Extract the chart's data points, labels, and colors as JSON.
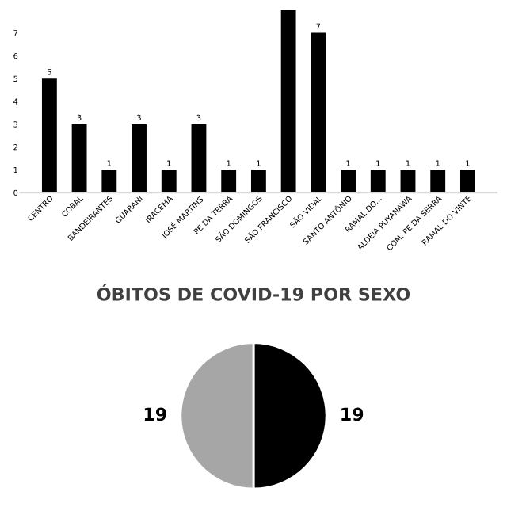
{
  "chart_data": [
    {
      "type": "bar",
      "categories": [
        "CENTRO",
        "COBAL",
        "BANDEIRANTES",
        "GUARANI",
        "IRACEMA",
        "JOSÉ MARTINS",
        "PE DA TERRA",
        "SÃO DOMINGOS",
        "SÃO FRANCISCO",
        "SÃO VIDAL",
        "SANTO ANTÔNIO",
        "RAMAL DO...",
        "ALDEIA PUYANAWA",
        "COM. PE DA SERRA",
        "RAMAL DO VINTE"
      ],
      "values": [
        5,
        3,
        1,
        3,
        1,
        3,
        1,
        1,
        8,
        7,
        1,
        1,
        1,
        1,
        1
      ],
      "value_labels": [
        "5",
        "3",
        "1",
        "3",
        "1",
        "3",
        "1",
        "1",
        null,
        "7",
        "1",
        "1",
        "1",
        "1",
        "1"
      ],
      "color": "#000000",
      "ylim": [
        0,
        8
      ],
      "yticks": [
        0,
        1,
        2,
        3,
        4,
        5,
        6,
        7
      ],
      "grid": false,
      "legend": false
    },
    {
      "type": "pie",
      "title": "ÓBITOS DE COVID-19 POR SEXO",
      "categories": [
        null,
        null
      ],
      "values": [
        19,
        19
      ],
      "colors": [
        "#000000",
        "#a6a6a6"
      ],
      "data_labels": true,
      "legend": false
    }
  ]
}
